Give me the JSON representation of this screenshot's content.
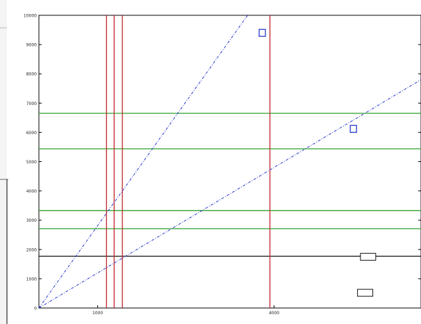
{
  "chart_data": {
    "type": "line",
    "title": "",
    "xlabel": "",
    "ylabel": "",
    "xlim": [
      0,
      6500
    ],
    "ylim": [
      0,
      10000
    ],
    "grid": false,
    "y_ticks": [
      0,
      1000,
      2000,
      3000,
      4000,
      5000,
      6000,
      7000,
      8000,
      9000,
      10000
    ],
    "y_tick_labels": [
      "0",
      "1000",
      "2000",
      "3000",
      "4000",
      "5000",
      "6000",
      "7000",
      "8000",
      "9000",
      "10000"
    ],
    "x_tick_labels": [
      "1000",
      "4000"
    ],
    "x_tick_positions": [
      1000,
      4000
    ],
    "series": [
      {
        "kind": "diagonal",
        "color": "#2a3ccc",
        "points": [
          [
            0,
            0
          ],
          [
            3550,
            10000
          ]
        ]
      },
      {
        "kind": "diagonal",
        "color": "#2a3ccc",
        "points": [
          [
            0,
            0
          ],
          [
            6500,
            7800
          ]
        ]
      }
    ],
    "vertical_lines": [
      {
        "x": 1150,
        "color": "#c0282d"
      },
      {
        "x": 1280,
        "color": "#c0282d"
      },
      {
        "x": 1420,
        "color": "#c0282d"
      },
      {
        "x": 3930,
        "color": "#c0282d"
      }
    ],
    "horizontal_lines": [
      {
        "y": 6650,
        "color": "#2fa02f"
      },
      {
        "y": 5440,
        "color": "#2fa02f"
      },
      {
        "y": 3330,
        "color": "#2fa02f"
      },
      {
        "y": 2710,
        "color": "#2fa02f"
      },
      {
        "y": 1770,
        "color": "#111111"
      }
    ],
    "markers": [
      {
        "x": 3800,
        "y": 9400,
        "shape": "square",
        "color": "#2a3ccc"
      },
      {
        "x": 5350,
        "y": 6120,
        "shape": "square",
        "color": "#2a3ccc"
      },
      {
        "x": 5600,
        "y": 1750,
        "shape": "box",
        "color": "#111111"
      },
      {
        "x": 5550,
        "y": 520,
        "shape": "box",
        "color": "#111111"
      }
    ]
  }
}
